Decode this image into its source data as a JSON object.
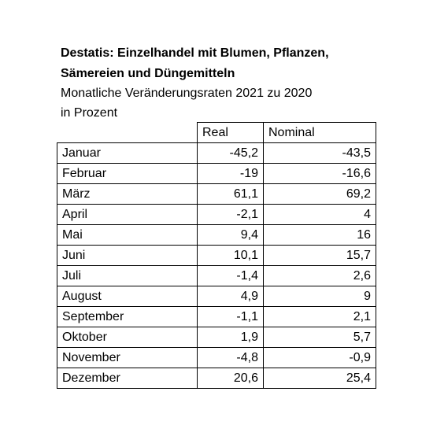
{
  "chart_data": {
    "type": "table",
    "title_line1": "Destatis: Einzelhandel mit Blumen, Pflanzen,",
    "title_line2": "Sämereien und Düngemitteln",
    "subtitle_line1": "Monatliche Veränderungsraten 2021 zu 2020",
    "subtitle_line2": "in Prozent",
    "columns": [
      "Real",
      "Nominal"
    ],
    "rows": [
      {
        "label": "Januar",
        "real": "-45,2",
        "nominal": "-43,5"
      },
      {
        "label": "Februar",
        "real": "-19",
        "nominal": "-16,6"
      },
      {
        "label": "März",
        "real": "61,1",
        "nominal": "69,2"
      },
      {
        "label": "April",
        "real": "-2,1",
        "nominal": "4"
      },
      {
        "label": "Mai",
        "real": "9,4",
        "nominal": "16"
      },
      {
        "label": "Juni",
        "real": "10,1",
        "nominal": "15,7"
      },
      {
        "label": "Juli",
        "real": "-1,4",
        "nominal": "2,6"
      },
      {
        "label": "August",
        "real": "4,9",
        "nominal": "9"
      },
      {
        "label": "September",
        "real": "-1,1",
        "nominal": "2,1"
      },
      {
        "label": "Oktober",
        "real": "1,9",
        "nominal": "5,7"
      },
      {
        "label": "November",
        "real": "-4,8",
        "nominal": "-0,9"
      },
      {
        "label": "Dezember",
        "real": "20,6",
        "nominal": "25,4"
      }
    ]
  }
}
